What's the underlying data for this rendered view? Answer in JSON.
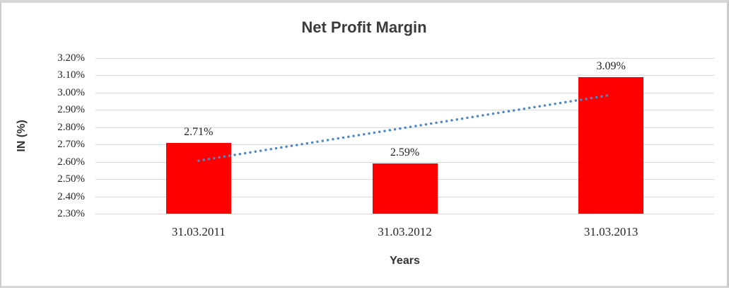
{
  "chart_data": {
    "type": "bar",
    "title": "Net Profit Margin",
    "xlabel": "Years",
    "ylabel": "IN (%)",
    "categories": [
      "31.03.2011",
      "31.03.2012",
      "31.03.2013"
    ],
    "series": [
      {
        "name": "Net Profit Margin",
        "values": [
          2.71,
          2.59,
          3.09
        ],
        "data_labels": [
          "2.71%",
          "2.59%",
          "3.09%"
        ],
        "color": "#ff0000"
      }
    ],
    "ylim": [
      2.3,
      3.2
    ],
    "ytick_step": 0.1,
    "ytick_labels": [
      "3.20%",
      "3.10%",
      "3.00%",
      "2.90%",
      "2.80%",
      "2.70%",
      "2.60%",
      "2.50%",
      "2.40%",
      "2.30%"
    ],
    "grid": true,
    "gridline_color": "#d9d9d9",
    "legend": "none",
    "trendline": {
      "type": "linear",
      "series": "Net Profit Margin",
      "style": "dotted",
      "color": "#4e87c8"
    }
  }
}
